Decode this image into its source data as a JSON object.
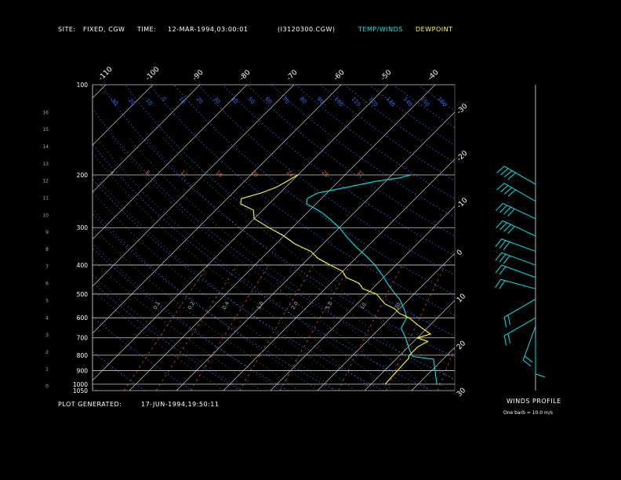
{
  "header": {
    "site_label": "SITE:",
    "site_value": "FIXED, CGW",
    "time_label": "TIME:",
    "time_value": "12-MAR-1994,03:00:01",
    "file_name": "(I3120300.CGW)",
    "legend_temp": "TEMP/WINDS",
    "legend_dew": "DEWPOINT"
  },
  "footer": {
    "generated_label": "PLOT GENERATED:",
    "generated_value": "17-JUN-1994,19:50:11",
    "winds_title": "WINDS PROFILE",
    "barb_note": "One barb = 10.0 m/s"
  },
  "colors": {
    "background": "#000000",
    "temp": "#00e5e5",
    "dewpoint": "#ffff33",
    "grid": "#c8c8c8",
    "dry_adiabat": "#3a6fff",
    "moist_adiabat": "#6b8fb0",
    "mixing_ratio": "#c0522a",
    "text": "#ffffff"
  },
  "chart_data": {
    "type": "line",
    "title": "",
    "pressure_range": [
      1050,
      100
    ],
    "pressure_labels": [
      "100",
      "200",
      "300",
      "400",
      "500",
      "600",
      "700",
      "800",
      "900",
      "1000",
      "1050"
    ],
    "height_labels": [
      "16",
      "15",
      "14",
      "13",
      "12",
      "11",
      "10",
      "9",
      "8",
      "7",
      "6",
      "5",
      "4",
      "3",
      "2",
      "1",
      "0"
    ],
    "temp_top_labels": [
      "-110",
      "-100",
      "-90",
      "-80",
      "-70",
      "-60",
      "-50",
      "-40"
    ],
    "temp_right_labels": [
      "-30",
      "-20",
      "-10",
      "0",
      "10",
      "20",
      "30"
    ],
    "potential_temp_labels": [
      "-50",
      "-40",
      "-30",
      "-20",
      "-10",
      "0",
      "10",
      "20",
      "30",
      "40",
      "50",
      "60",
      "70",
      "80",
      "90",
      "100",
      "110",
      "120",
      "130",
      "140",
      "150",
      "160"
    ],
    "mixing_ratio_labels": [
      "0.1",
      "0.2",
      "0.4",
      "1.0",
      "2.0",
      "5.0",
      "10.",
      "20."
    ],
    "wet_bulb_labels": [
      "4",
      "8",
      "12",
      "16",
      "20",
      "24",
      "28",
      "32"
    ],
    "series": [
      {
        "name": "TEMP/WINDS",
        "points": [
          {
            "p": 1000,
            "t": 24.0
          },
          {
            "p": 825,
            "t": 18.0
          },
          {
            "p": 808,
            "t": 13.0
          },
          {
            "p": 770,
            "t": 11.0
          },
          {
            "p": 700,
            "t": 7.5
          },
          {
            "p": 650,
            "t": 4.5
          },
          {
            "p": 600,
            "t": 3.5
          },
          {
            "p": 560,
            "t": 1.0
          },
          {
            "p": 520,
            "t": -2.0
          },
          {
            "p": 490,
            "t": -5.0
          },
          {
            "p": 460,
            "t": -8.0
          },
          {
            "p": 430,
            "t": -11.0
          },
          {
            "p": 400,
            "t": -14.5
          },
          {
            "p": 375,
            "t": -18.0
          },
          {
            "p": 350,
            "t": -22.0
          },
          {
            "p": 325,
            "t": -26.0
          },
          {
            "p": 300,
            "t": -30.0
          },
          {
            "p": 280,
            "t": -34.0
          },
          {
            "p": 265,
            "t": -37.5
          },
          {
            "p": 250,
            "t": -42.0
          },
          {
            "p": 240,
            "t": -43.0
          },
          {
            "p": 230,
            "t": -42.0
          },
          {
            "p": 220,
            "t": -37.0
          },
          {
            "p": 210,
            "t": -32.0
          },
          {
            "p": 205,
            "t": -28.0
          },
          {
            "p": 200,
            "t": -26.0
          }
        ]
      },
      {
        "name": "DEWPOINT",
        "points": [
          {
            "p": 1000,
            "t": 13.0
          },
          {
            "p": 820,
            "t": 12.5
          },
          {
            "p": 800,
            "t": 12.0
          },
          {
            "p": 750,
            "t": 12.0
          },
          {
            "p": 720,
            "t": 13.0
          },
          {
            "p": 700,
            "t": 10.0
          },
          {
            "p": 680,
            "t": 12.0
          },
          {
            "p": 650,
            "t": 9.0
          },
          {
            "p": 630,
            "t": 7.0
          },
          {
            "p": 600,
            "t": 4.0
          },
          {
            "p": 580,
            "t": 1.0
          },
          {
            "p": 560,
            "t": -1.0
          },
          {
            "p": 540,
            "t": -4.0
          },
          {
            "p": 520,
            "t": -6.0
          },
          {
            "p": 500,
            "t": -8.0
          },
          {
            "p": 480,
            "t": -12.0
          },
          {
            "p": 460,
            "t": -14.0
          },
          {
            "p": 440,
            "t": -18.0
          },
          {
            "p": 420,
            "t": -20.0
          },
          {
            "p": 400,
            "t": -24.0
          },
          {
            "p": 380,
            "t": -28.0
          },
          {
            "p": 360,
            "t": -31.0
          },
          {
            "p": 340,
            "t": -36.0
          },
          {
            "p": 320,
            "t": -40.0
          },
          {
            "p": 300,
            "t": -45.0
          },
          {
            "p": 280,
            "t": -50.0
          },
          {
            "p": 262,
            "t": -52.0
          },
          {
            "p": 250,
            "t": -56.0
          },
          {
            "p": 240,
            "t": -57.0
          },
          {
            "p": 230,
            "t": -54.0
          },
          {
            "p": 220,
            "t": -52.0
          },
          {
            "p": 210,
            "t": -51.0
          },
          {
            "p": 200,
            "t": -50.0
          }
        ]
      }
    ],
    "winds_profile": {
      "barb_unit_ms": 10.0,
      "winds": [
        {
          "p": 215,
          "dir": 300,
          "speed": 40
        },
        {
          "p": 245,
          "dir": 300,
          "speed": 40
        },
        {
          "p": 280,
          "dir": 295,
          "speed": 40
        },
        {
          "p": 320,
          "dir": 295,
          "speed": 40
        },
        {
          "p": 360,
          "dir": 290,
          "speed": 30
        },
        {
          "p": 400,
          "dir": 290,
          "speed": 30
        },
        {
          "p": 440,
          "dir": 290,
          "speed": 20
        },
        {
          "p": 480,
          "dir": 285,
          "speed": 20
        },
        {
          "p": 520,
          "dir": 240,
          "speed": 20
        },
        {
          "p": 600,
          "dir": 240,
          "speed": 15
        },
        {
          "p": 640,
          "dir": 200,
          "speed": 15
        },
        {
          "p": 700,
          "dir": 180,
          "speed": 10
        }
      ]
    }
  }
}
